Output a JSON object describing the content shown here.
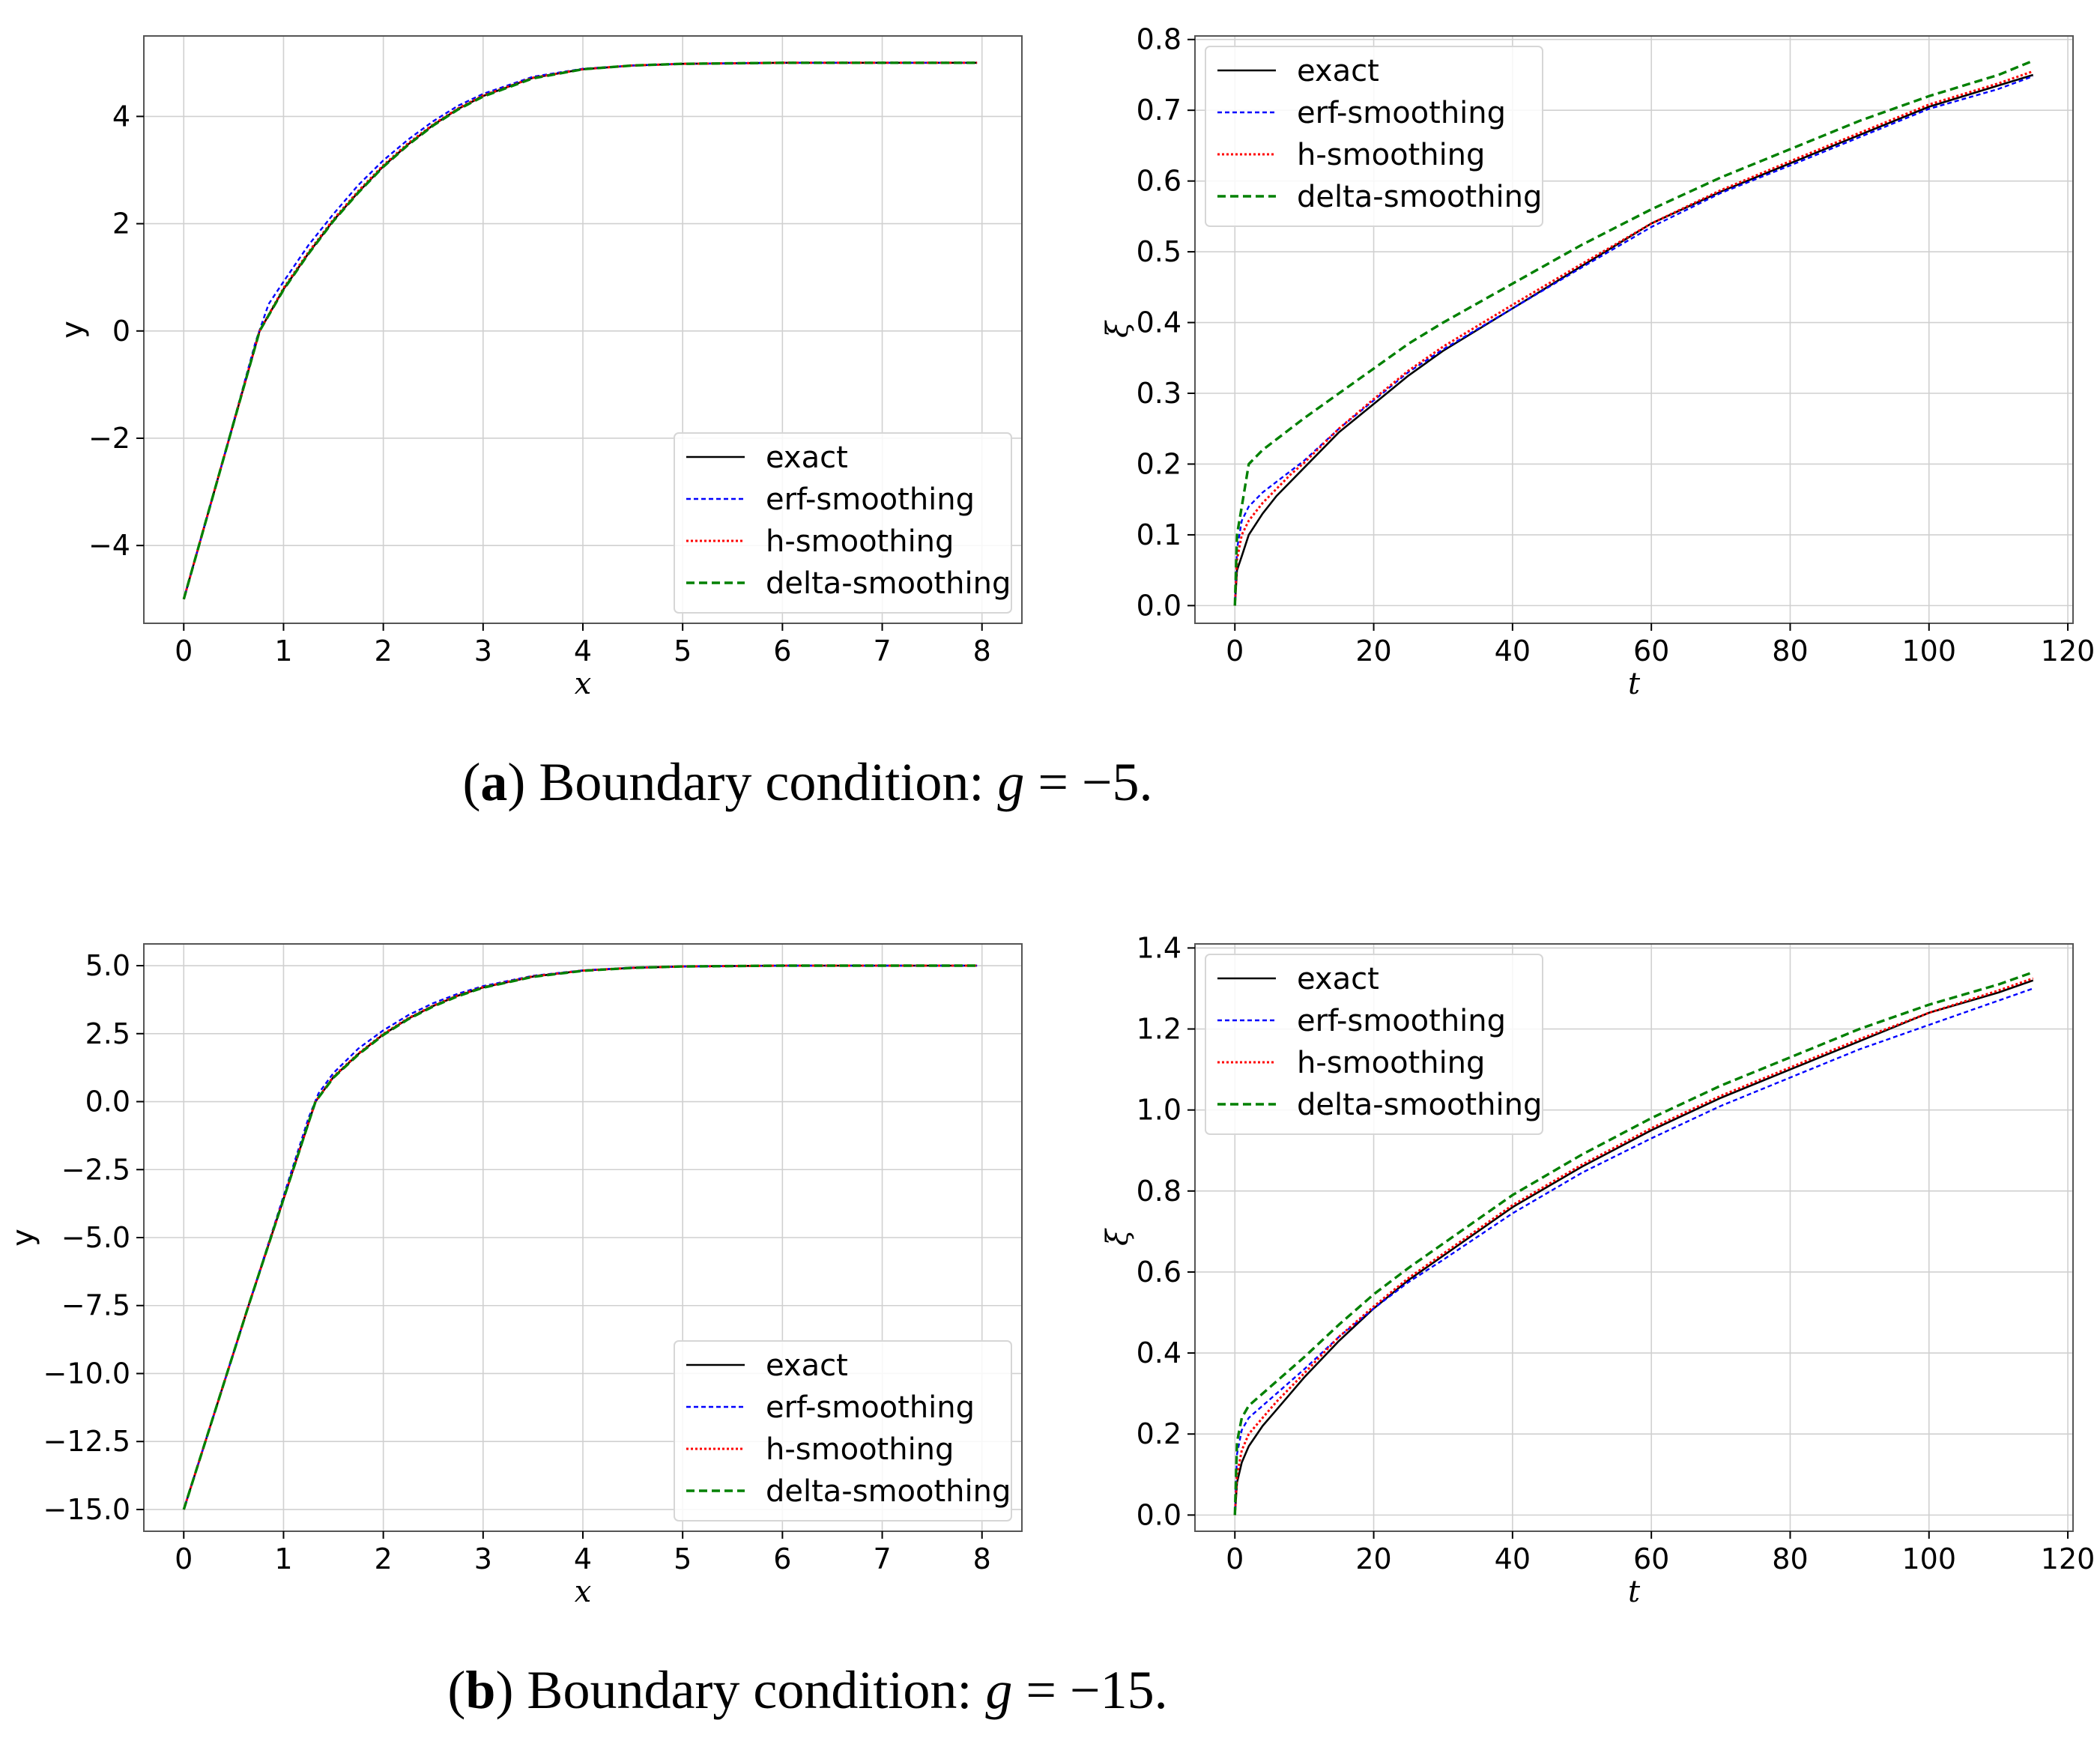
{
  "colors": {
    "exact": "#000000",
    "erf": "#0000ff",
    "h": "#ff0000",
    "delta": "#008000",
    "grid": "#d0d0d0",
    "frame": "#555555"
  },
  "captions": [
    {
      "label": "a",
      "text": " Boundary condition: ",
      "math_var": "g",
      "math_eq": " = −5."
    },
    {
      "label": "b",
      "text": " Boundary condition: ",
      "math_var": "g",
      "math_eq": " = −15."
    }
  ],
  "chart_data": [
    {
      "id": "a-left",
      "type": "line",
      "xlabel": "x",
      "ylabel": "y",
      "xlim": [
        -0.4,
        8.4
      ],
      "ylim": [
        -5.45,
        5.5
      ],
      "xticks": [
        0,
        1,
        2,
        3,
        4,
        5,
        6,
        7,
        8
      ],
      "xtick_labels": [
        "0",
        "1",
        "2",
        "3",
        "4",
        "5",
        "6",
        "7",
        "8"
      ],
      "yticks": [
        -4,
        -2,
        0,
        2,
        4
      ],
      "ytick_labels": [
        "−4",
        "−2",
        "0",
        "2",
        "4"
      ],
      "legend_position": "lower-right",
      "series": [
        {
          "name": "exact",
          "key": "exact",
          "x": [
            0,
            0.38,
            0.76,
            1,
            1.25,
            1.5,
            1.75,
            2,
            2.25,
            2.5,
            2.75,
            3,
            3.5,
            4,
            4.5,
            5,
            6,
            7,
            7.95
          ],
          "y": [
            -5,
            -2.5,
            0,
            0.78,
            1.45,
            2.06,
            2.59,
            3.07,
            3.48,
            3.84,
            4.14,
            4.38,
            4.72,
            4.88,
            4.95,
            4.98,
            5,
            5,
            5
          ]
        },
        {
          "name": "erf-smoothing",
          "key": "erf",
          "x": [
            0,
            0.38,
            0.72,
            0.85,
            1,
            1.25,
            1.5,
            1.75,
            2,
            2.25,
            2.5,
            2.75,
            3,
            3.5,
            4,
            4.5,
            5,
            6,
            7,
            7.95
          ],
          "y": [
            -5,
            -2.5,
            -0.2,
            0.5,
            0.92,
            1.6,
            2.18,
            2.72,
            3.18,
            3.57,
            3.91,
            4.2,
            4.42,
            4.74,
            4.89,
            4.95,
            4.98,
            5,
            5,
            5
          ]
        },
        {
          "name": "h-smoothing",
          "key": "h",
          "x": [
            0,
            0.38,
            0.76,
            1,
            1.25,
            1.5,
            1.75,
            2,
            2.25,
            2.5,
            2.75,
            3,
            3.5,
            4,
            4.5,
            5,
            6,
            7,
            7.95
          ],
          "y": [
            -5,
            -2.5,
            0,
            0.8,
            1.47,
            2.08,
            2.61,
            3.09,
            3.5,
            3.85,
            4.15,
            4.39,
            4.72,
            4.88,
            4.95,
            4.98,
            5,
            5,
            5
          ]
        },
        {
          "name": "delta-smoothing",
          "key": "delta",
          "x": [
            0,
            0.38,
            0.76,
            1,
            1.25,
            1.5,
            1.75,
            2,
            2.25,
            2.5,
            2.75,
            3,
            3.5,
            4,
            4.5,
            5,
            6,
            7,
            7.95
          ],
          "y": [
            -5,
            -2.5,
            0,
            0.77,
            1.44,
            2.05,
            2.58,
            3.06,
            3.47,
            3.83,
            4.13,
            4.37,
            4.71,
            4.88,
            4.95,
            4.98,
            5,
            5,
            5
          ]
        }
      ]
    },
    {
      "id": "a-right",
      "type": "line",
      "xlabel": "t",
      "ylabel": "ξ",
      "xlim": [
        -5.75,
        120.75
      ],
      "ylim": [
        -0.025,
        0.805
      ],
      "xticks": [
        0,
        20,
        40,
        60,
        80,
        100,
        120
      ],
      "xtick_labels": [
        "0",
        "20",
        "40",
        "60",
        "80",
        "100",
        "120"
      ],
      "yticks": [
        0,
        0.1,
        0.2,
        0.3,
        0.4,
        0.5,
        0.6,
        0.7,
        0.8
      ],
      "ytick_labels": [
        "0.0",
        "0.1",
        "0.2",
        "0.3",
        "0.4",
        "0.5",
        "0.6",
        "0.7",
        "0.8"
      ],
      "legend_position": "upper-left",
      "series": [
        {
          "name": "exact",
          "key": "exact",
          "x": [
            0,
            0.3,
            1,
            2,
            4,
            6,
            8,
            10,
            15,
            20,
            25,
            30,
            40,
            50,
            60,
            70,
            80,
            90,
            100,
            110,
            115
          ],
          "y": [
            0,
            0.05,
            0.07,
            0.1,
            0.13,
            0.155,
            0.175,
            0.195,
            0.245,
            0.285,
            0.325,
            0.36,
            0.42,
            0.48,
            0.54,
            0.585,
            0.625,
            0.665,
            0.705,
            0.735,
            0.75
          ]
        },
        {
          "name": "erf-smoothing",
          "key": "erf",
          "x": [
            0,
            0.3,
            1,
            2,
            4,
            6,
            8,
            10,
            15,
            20,
            25,
            30,
            40,
            50,
            60,
            70,
            80,
            90,
            100,
            110,
            115
          ],
          "y": [
            0,
            0.08,
            0.12,
            0.14,
            0.16,
            0.175,
            0.19,
            0.205,
            0.25,
            0.29,
            0.33,
            0.362,
            0.42,
            0.478,
            0.535,
            0.583,
            0.622,
            0.662,
            0.702,
            0.73,
            0.748
          ]
        },
        {
          "name": "h-smoothing",
          "key": "h",
          "x": [
            0,
            0.3,
            1,
            2,
            4,
            6,
            8,
            10,
            15,
            20,
            25,
            30,
            40,
            50,
            60,
            70,
            80,
            90,
            100,
            110,
            115
          ],
          "y": [
            0,
            0.065,
            0.1,
            0.12,
            0.145,
            0.165,
            0.185,
            0.202,
            0.25,
            0.292,
            0.332,
            0.366,
            0.425,
            0.483,
            0.54,
            0.587,
            0.628,
            0.668,
            0.708,
            0.738,
            0.755
          ]
        },
        {
          "name": "delta-smoothing",
          "key": "delta",
          "x": [
            0,
            0.3,
            1,
            2,
            4,
            6,
            8,
            10,
            15,
            20,
            25,
            30,
            40,
            50,
            60,
            70,
            80,
            90,
            100,
            110,
            115
          ],
          "y": [
            0,
            0.1,
            0.14,
            0.2,
            0.22,
            0.235,
            0.25,
            0.265,
            0.3,
            0.335,
            0.37,
            0.4,
            0.455,
            0.51,
            0.56,
            0.605,
            0.645,
            0.685,
            0.72,
            0.75,
            0.77
          ]
        }
      ]
    },
    {
      "id": "b-left",
      "type": "line",
      "xlabel": "x",
      "ylabel": "y",
      "xlim": [
        -0.4,
        8.4
      ],
      "ylim": [
        -15.8,
        5.8
      ],
      "xticks": [
        0,
        1,
        2,
        3,
        4,
        5,
        6,
        7,
        8
      ],
      "xtick_labels": [
        "0",
        "1",
        "2",
        "3",
        "4",
        "5",
        "6",
        "7",
        "8"
      ],
      "yticks": [
        -15,
        -12.5,
        -10,
        -7.5,
        -5,
        -2.5,
        0,
        2.5,
        5
      ],
      "ytick_labels": [
        "−15.0",
        "−12.5",
        "−10.0",
        "−7.5",
        "−5.0",
        "−2.5",
        "0.0",
        "2.5",
        "5.0"
      ],
      "legend_position": "lower-right",
      "series": [
        {
          "name": "exact",
          "key": "exact",
          "x": [
            0,
            0.65,
            1.32,
            1.5,
            1.75,
            2,
            2.25,
            2.5,
            2.75,
            3,
            3.5,
            4,
            4.5,
            5,
            6,
            7,
            7.95
          ],
          "y": [
            -15,
            -7.5,
            0,
            0.9,
            1.75,
            2.47,
            3.05,
            3.52,
            3.9,
            4.2,
            4.6,
            4.82,
            4.92,
            4.97,
            5,
            5,
            5
          ]
        },
        {
          "name": "erf-smoothing",
          "key": "erf",
          "x": [
            0,
            0.65,
            1.25,
            1.35,
            1.5,
            1.75,
            2,
            2.25,
            2.5,
            2.75,
            3,
            3.5,
            4,
            4.5,
            5,
            6,
            7,
            7.95
          ],
          "y": [
            -15,
            -7.5,
            -0.6,
            0.3,
            1.05,
            1.95,
            2.62,
            3.18,
            3.62,
            3.97,
            4.25,
            4.63,
            4.83,
            4.93,
            4.97,
            5,
            5,
            5
          ]
        },
        {
          "name": "h-smoothing",
          "key": "h",
          "x": [
            0,
            0.65,
            1.32,
            1.5,
            1.75,
            2,
            2.25,
            2.5,
            2.75,
            3,
            3.5,
            4,
            4.5,
            5,
            6,
            7,
            7.95
          ],
          "y": [
            -15,
            -7.5,
            0,
            0.92,
            1.77,
            2.49,
            3.07,
            3.53,
            3.91,
            4.21,
            4.61,
            4.82,
            4.92,
            4.97,
            5,
            5,
            5
          ]
        },
        {
          "name": "delta-smoothing",
          "key": "delta",
          "x": [
            0,
            0.65,
            1.32,
            1.5,
            1.75,
            2,
            2.25,
            2.5,
            2.75,
            3,
            3.5,
            4,
            4.5,
            5,
            6,
            7,
            7.95
          ],
          "y": [
            -15,
            -7.5,
            0,
            0.88,
            1.73,
            2.45,
            3.03,
            3.5,
            3.88,
            4.19,
            4.59,
            4.81,
            4.92,
            4.97,
            5,
            5,
            5
          ]
        }
      ]
    },
    {
      "id": "b-right",
      "type": "line",
      "xlabel": "t",
      "ylabel": "ξ",
      "xlim": [
        -5.75,
        120.75
      ],
      "ylim": [
        -0.04,
        1.41
      ],
      "xticks": [
        0,
        20,
        40,
        60,
        80,
        100,
        120
      ],
      "xtick_labels": [
        "0",
        "20",
        "40",
        "60",
        "80",
        "100",
        "120"
      ],
      "yticks": [
        0,
        0.2,
        0.4,
        0.6,
        0.8,
        1.0,
        1.2,
        1.4
      ],
      "ytick_labels": [
        "0.0",
        "0.2",
        "0.4",
        "0.6",
        "0.8",
        "1.0",
        "1.2",
        "1.4"
      ],
      "legend_position": "upper-left",
      "series": [
        {
          "name": "exact",
          "key": "exact",
          "x": [
            0,
            0.3,
            1,
            2,
            4,
            6,
            8,
            10,
            15,
            20,
            25,
            30,
            40,
            50,
            60,
            70,
            80,
            90,
            100,
            110,
            115
          ],
          "y": [
            0,
            0.08,
            0.13,
            0.17,
            0.22,
            0.26,
            0.3,
            0.34,
            0.43,
            0.51,
            0.58,
            0.64,
            0.76,
            0.86,
            0.95,
            1.03,
            1.1,
            1.17,
            1.24,
            1.29,
            1.32
          ]
        },
        {
          "name": "erf-smoothing",
          "key": "erf",
          "x": [
            0,
            0.3,
            1,
            2,
            4,
            6,
            8,
            10,
            15,
            20,
            25,
            30,
            40,
            50,
            60,
            70,
            80,
            90,
            100,
            110,
            115
          ],
          "y": [
            0,
            0.15,
            0.21,
            0.24,
            0.27,
            0.3,
            0.33,
            0.36,
            0.44,
            0.51,
            0.575,
            0.63,
            0.745,
            0.845,
            0.93,
            1.01,
            1.08,
            1.15,
            1.21,
            1.27,
            1.3
          ]
        },
        {
          "name": "h-smoothing",
          "key": "h",
          "x": [
            0,
            0.3,
            1,
            2,
            4,
            6,
            8,
            10,
            15,
            20,
            25,
            30,
            40,
            50,
            60,
            70,
            80,
            90,
            100,
            110,
            115
          ],
          "y": [
            0,
            0.1,
            0.16,
            0.2,
            0.24,
            0.28,
            0.315,
            0.35,
            0.44,
            0.515,
            0.585,
            0.645,
            0.765,
            0.865,
            0.955,
            1.035,
            1.105,
            1.175,
            1.24,
            1.295,
            1.325
          ]
        },
        {
          "name": "delta-smoothing",
          "key": "delta",
          "x": [
            0,
            0.3,
            1,
            2,
            4,
            6,
            8,
            10,
            15,
            20,
            25,
            30,
            40,
            50,
            60,
            70,
            80,
            90,
            100,
            110,
            115
          ],
          "y": [
            0,
            0.18,
            0.24,
            0.27,
            0.3,
            0.33,
            0.36,
            0.39,
            0.47,
            0.545,
            0.61,
            0.67,
            0.79,
            0.89,
            0.98,
            1.06,
            1.13,
            1.2,
            1.26,
            1.31,
            1.34
          ]
        }
      ]
    }
  ]
}
